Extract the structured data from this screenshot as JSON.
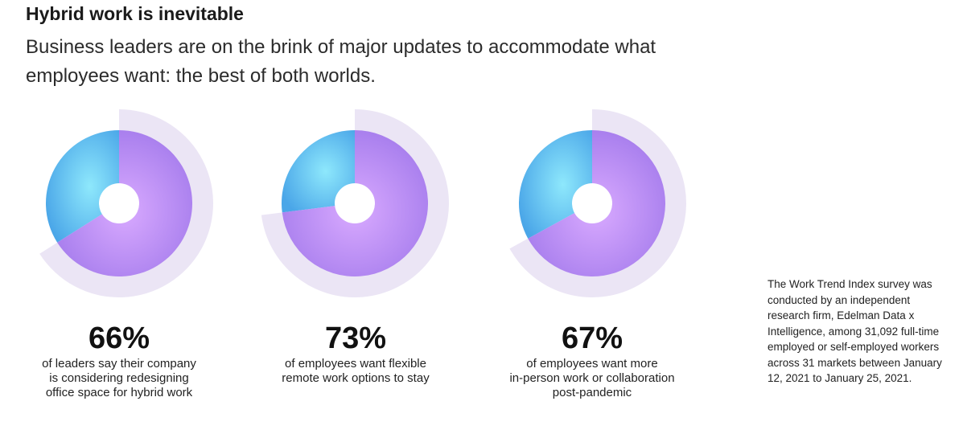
{
  "header": {
    "title": "Hybrid work is inevitable",
    "subtitle": "Business leaders are on the brink of major updates to accommodate what employees want: the best of both worlds."
  },
  "colors": {
    "purple_light": "#d4a6ff",
    "purple_dark": "#a77ef0",
    "blue_light": "#7fe0fb",
    "blue_dark": "#4faaea",
    "outer_ring": "#e8e1f3"
  },
  "chart_data": {
    "type": "pie",
    "items": [
      {
        "value": 66,
        "label": "66%",
        "description": [
          "of leaders say their company",
          "is considering redesigning",
          "office space for hybrid work"
        ]
      },
      {
        "value": 73,
        "label": "73%",
        "description": [
          "of employees want flexible",
          "remote work options to stay"
        ]
      },
      {
        "value": 67,
        "label": "67%",
        "description": [
          "of employees want more",
          "in-person work or collaboration",
          "post-pandemic"
        ]
      }
    ]
  },
  "footnote": "The Work Trend Index survey was conducted by an independent research firm, Edelman Data x Intelligence, among 31,092 full-time employed or self-employed workers across 31 markets between January 12, 2021 to January 25, 2021."
}
